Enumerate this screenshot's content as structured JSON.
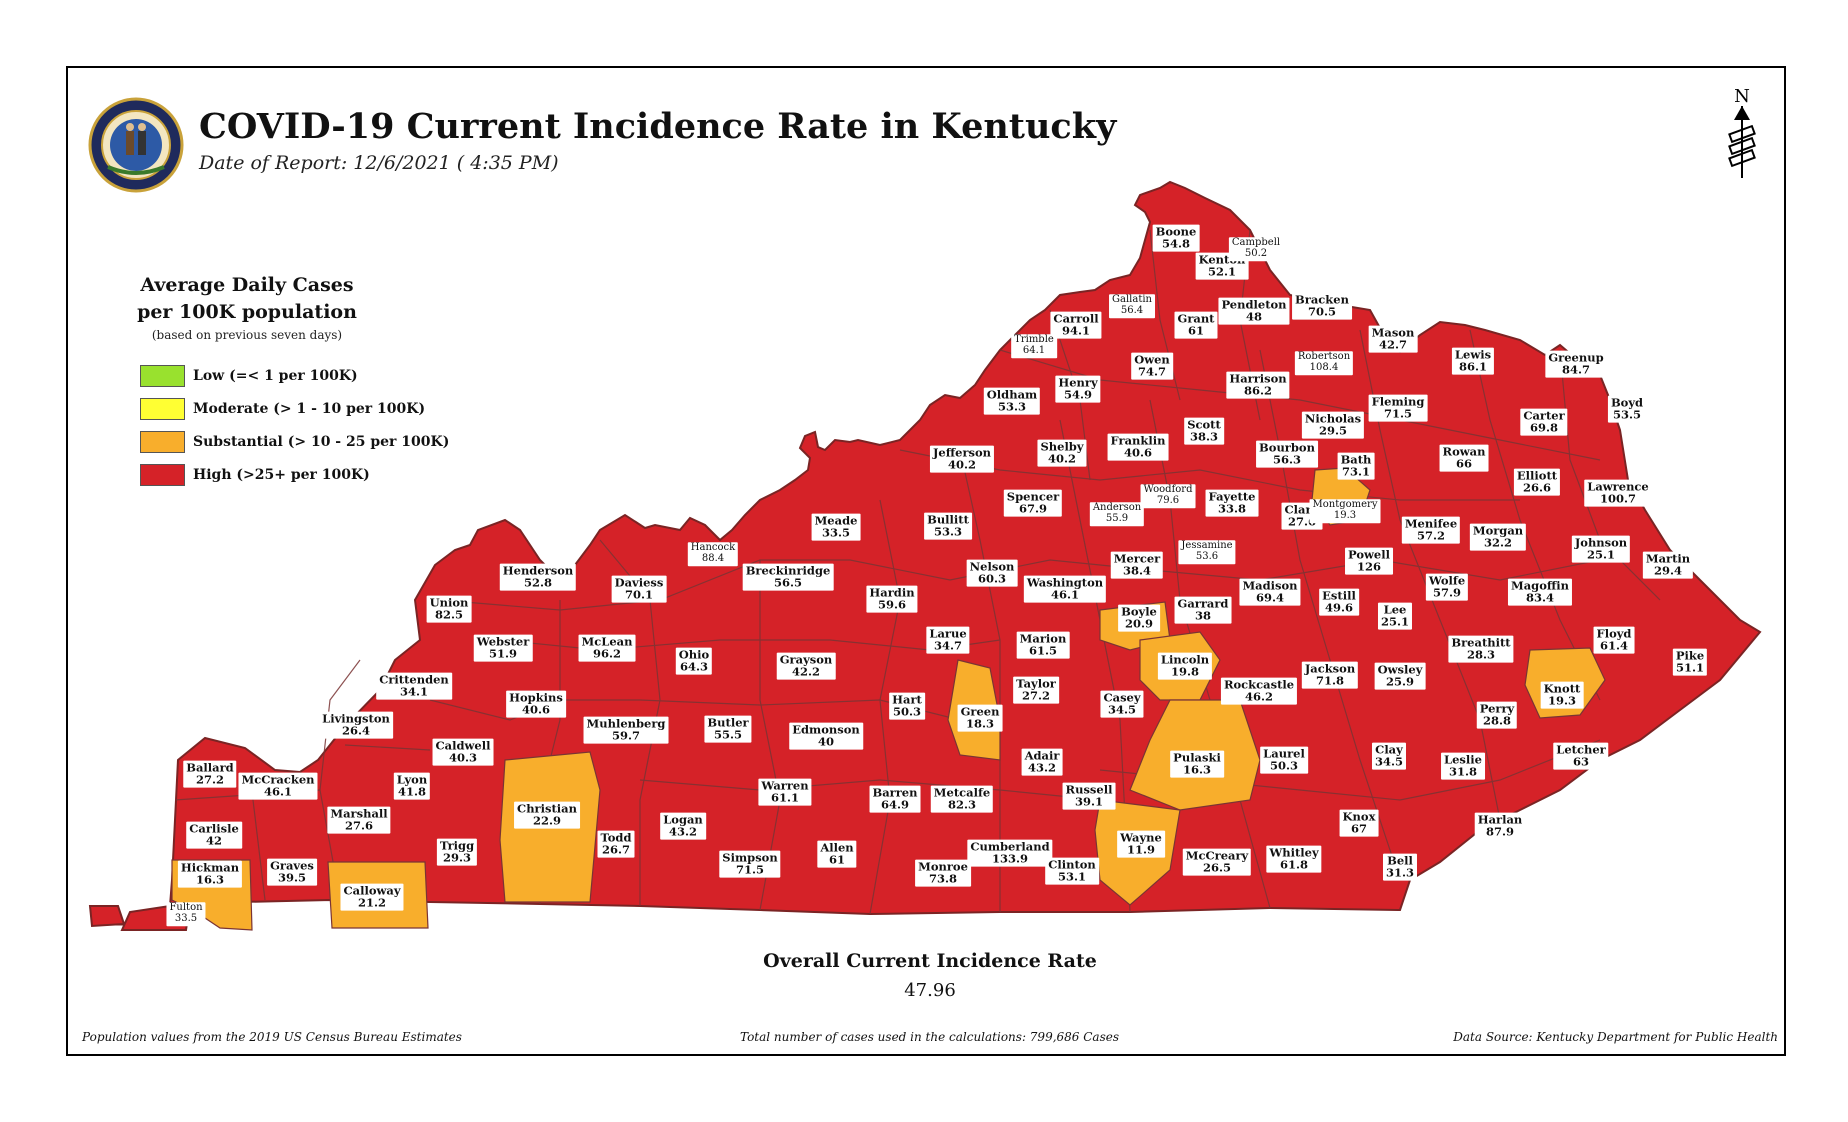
{
  "title": "COVID-19 Current Incidence Rate in Kentucky",
  "report_date": "Date of Report: 12/6/2021 ( 4:35 PM)",
  "seal_text": "COMMONWEALTH OF KENTUCKY",
  "north_label": "N",
  "legend": {
    "title_line1": "Average Daily Cases",
    "title_line2": "per 100K population",
    "note": "(based on previous seven days)",
    "items": [
      {
        "label": "Low (=< 1 per 100K)",
        "color": "#99e12e"
      },
      {
        "label": "Moderate (> 1 - 10 per 100K)",
        "color": "#ffff33"
      },
      {
        "label": "Substantial (> 10 - 25 per 100K)",
        "color": "#f8ae2c"
      },
      {
        "label": "High (>25+ per 100K)",
        "color": "#d52228"
      }
    ]
  },
  "colors": {
    "high": "#d52228",
    "substantial": "#f8ae2c",
    "border": "#8a3b3b"
  },
  "overall": {
    "title": "Overall Current Incidence Rate",
    "value": "47.96"
  },
  "footer": {
    "left": "Population values from the 2019 US Census Bureau Estimates",
    "center": "Total number of cases used in the calculations: 799,686 Cases",
    "right": "Data Source: Kentucky Department for Public Health"
  },
  "counties": [
    {
      "name": "Boone",
      "rate": "54.8"
    },
    {
      "name": "Kenton",
      "rate": "52.1"
    },
    {
      "name": "Campbell",
      "rate": "50.2"
    },
    {
      "name": "Gallatin",
      "rate": "56.4"
    },
    {
      "name": "Carroll",
      "rate": "94.1"
    },
    {
      "name": "Trimble",
      "rate": "64.1"
    },
    {
      "name": "Grant",
      "rate": "61"
    },
    {
      "name": "Pendleton",
      "rate": "48"
    },
    {
      "name": "Bracken",
      "rate": "70.5"
    },
    {
      "name": "Mason",
      "rate": "42.7"
    },
    {
      "name": "Robertson",
      "rate": "108.4"
    },
    {
      "name": "Owen",
      "rate": "74.7"
    },
    {
      "name": "Henry",
      "rate": "54.9"
    },
    {
      "name": "Oldham",
      "rate": "53.3"
    },
    {
      "name": "Harrison",
      "rate": "86.2"
    },
    {
      "name": "Lewis",
      "rate": "86.1"
    },
    {
      "name": "Greenup",
      "rate": "84.7"
    },
    {
      "name": "Boyd",
      "rate": "53.5"
    },
    {
      "name": "Fleming",
      "rate": "71.5"
    },
    {
      "name": "Nicholas",
      "rate": "29.5"
    },
    {
      "name": "Carter",
      "rate": "69.8"
    },
    {
      "name": "Scott",
      "rate": "38.3"
    },
    {
      "name": "Franklin",
      "rate": "40.6"
    },
    {
      "name": "Shelby",
      "rate": "40.2"
    },
    {
      "name": "Jefferson",
      "rate": "40.2"
    },
    {
      "name": "Bourbon",
      "rate": "56.3"
    },
    {
      "name": "Bath",
      "rate": "73.1"
    },
    {
      "name": "Rowan",
      "rate": "66"
    },
    {
      "name": "Elliott",
      "rate": "26.6"
    },
    {
      "name": "Lawrence",
      "rate": "100.7"
    },
    {
      "name": "Woodford",
      "rate": "79.6"
    },
    {
      "name": "Fayette",
      "rate": "33.8"
    },
    {
      "name": "Spencer",
      "rate": "67.9"
    },
    {
      "name": "Anderson",
      "rate": "55.9"
    },
    {
      "name": "Clark",
      "rate": "27.6"
    },
    {
      "name": "Montgomery",
      "rate": "19.3"
    },
    {
      "name": "Menifee",
      "rate": "57.2"
    },
    {
      "name": "Morgan",
      "rate": "32.2"
    },
    {
      "name": "Johnson",
      "rate": "25.1"
    },
    {
      "name": "Martin",
      "rate": "29.4"
    },
    {
      "name": "Meade",
      "rate": "33.5"
    },
    {
      "name": "Bullitt",
      "rate": "53.3"
    },
    {
      "name": "Hancock",
      "rate": "88.4"
    },
    {
      "name": "Jessamine",
      "rate": "53.6"
    },
    {
      "name": "Mercer",
      "rate": "38.4"
    },
    {
      "name": "Powell",
      "rate": "126"
    },
    {
      "name": "Nelson",
      "rate": "60.3"
    },
    {
      "name": "Washington",
      "rate": "46.1"
    },
    {
      "name": "Henderson",
      "rate": "52.8"
    },
    {
      "name": "Daviess",
      "rate": "70.1"
    },
    {
      "name": "Breckinridge",
      "rate": "56.5"
    },
    {
      "name": "Hardin",
      "rate": "59.6"
    },
    {
      "name": "Madison",
      "rate": "69.4"
    },
    {
      "name": "Estill",
      "rate": "49.6"
    },
    {
      "name": "Wolfe",
      "rate": "57.9"
    },
    {
      "name": "Magoffin",
      "rate": "83.4"
    },
    {
      "name": "Boyle",
      "rate": "20.9"
    },
    {
      "name": "Garrard",
      "rate": "38"
    },
    {
      "name": "Lee",
      "rate": "25.1"
    },
    {
      "name": "Breathitt",
      "rate": "28.3"
    },
    {
      "name": "Floyd",
      "rate": "61.4"
    },
    {
      "name": "Union",
      "rate": "82.5"
    },
    {
      "name": "Webster",
      "rate": "51.9"
    },
    {
      "name": "McLean",
      "rate": "96.2"
    },
    {
      "name": "Ohio",
      "rate": "64.3"
    },
    {
      "name": "Grayson",
      "rate": "42.2"
    },
    {
      "name": "Larue",
      "rate": "34.7"
    },
    {
      "name": "Marion",
      "rate": "61.5"
    },
    {
      "name": "Lincoln",
      "rate": "19.8"
    },
    {
      "name": "Jackson",
      "rate": "71.8"
    },
    {
      "name": "Owsley",
      "rate": "25.9"
    },
    {
      "name": "Pike",
      "rate": "51.1"
    },
    {
      "name": "Crittenden",
      "rate": "34.1"
    },
    {
      "name": "Hopkins",
      "rate": "40.6"
    },
    {
      "name": "Taylor",
      "rate": "27.2"
    },
    {
      "name": "Casey",
      "rate": "34.5"
    },
    {
      "name": "Rockcastle",
      "rate": "46.2"
    },
    {
      "name": "Knott",
      "rate": "19.3"
    },
    {
      "name": "Livingston",
      "rate": "26.4"
    },
    {
      "name": "Muhlenberg",
      "rate": "59.7"
    },
    {
      "name": "Butler",
      "rate": "55.5"
    },
    {
      "name": "Edmonson",
      "rate": "40"
    },
    {
      "name": "Hart",
      "rate": "50.3"
    },
    {
      "name": "Green",
      "rate": "18.3"
    },
    {
      "name": "Perry",
      "rate": "28.8"
    },
    {
      "name": "Caldwell",
      "rate": "40.3"
    },
    {
      "name": "Letcher",
      "rate": "63"
    },
    {
      "name": "Adair",
      "rate": "43.2"
    },
    {
      "name": "Pulaski",
      "rate": "16.3"
    },
    {
      "name": "Laurel",
      "rate": "50.3"
    },
    {
      "name": "Clay",
      "rate": "34.5"
    },
    {
      "name": "Leslie",
      "rate": "31.8"
    },
    {
      "name": "Ballard",
      "rate": "27.2"
    },
    {
      "name": "McCracken",
      "rate": "46.1"
    },
    {
      "name": "Lyon",
      "rate": "41.8"
    },
    {
      "name": "Marshall",
      "rate": "27.6"
    },
    {
      "name": "Christian",
      "rate": "22.9"
    },
    {
      "name": "Warren",
      "rate": "61.1"
    },
    {
      "name": "Barren",
      "rate": "64.9"
    },
    {
      "name": "Metcalfe",
      "rate": "82.3"
    },
    {
      "name": "Russell",
      "rate": "39.1"
    },
    {
      "name": "Knox",
      "rate": "67"
    },
    {
      "name": "Harlan",
      "rate": "87.9"
    },
    {
      "name": "Carlisle",
      "rate": "42"
    },
    {
      "name": "Logan",
      "rate": "43.2"
    },
    {
      "name": "Trigg",
      "rate": "29.3"
    },
    {
      "name": "Todd",
      "rate": "26.7"
    },
    {
      "name": "Allen",
      "rate": "61"
    },
    {
      "name": "Wayne",
      "rate": "11.9"
    },
    {
      "name": "Cumberland",
      "rate": "133.9"
    },
    {
      "name": "Hickman",
      "rate": "16.3"
    },
    {
      "name": "Graves",
      "rate": "39.5"
    },
    {
      "name": "Simpson",
      "rate": "71.5"
    },
    {
      "name": "Monroe",
      "rate": "73.8"
    },
    {
      "name": "Clinton",
      "rate": "53.1"
    },
    {
      "name": "McCreary",
      "rate": "26.5"
    },
    {
      "name": "Whitley",
      "rate": "61.8"
    },
    {
      "name": "Bell",
      "rate": "31.3"
    },
    {
      "name": "Calloway",
      "rate": "21.2"
    },
    {
      "name": "Fulton",
      "rate": "33.5"
    }
  ]
}
